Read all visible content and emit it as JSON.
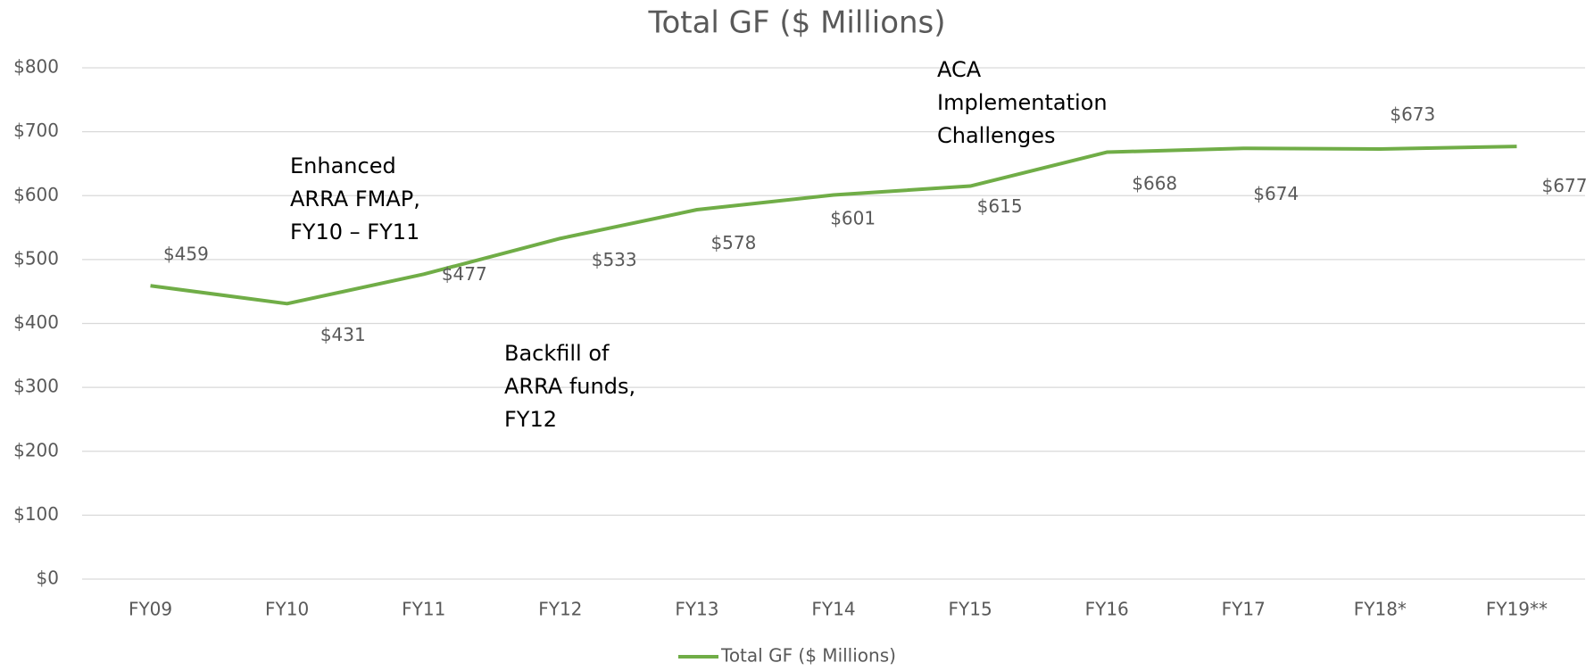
{
  "chart_data": {
    "type": "line",
    "title": "Total GF ($ Millions)",
    "categories": [
      "FY09",
      "FY10",
      "FY11",
      "FY12",
      "FY13",
      "FY14",
      "FY15",
      "FY16",
      "FY17",
      "FY18*",
      "FY19**"
    ],
    "series": [
      {
        "name": "Total GF ($ Millions)",
        "color": "#70ad47",
        "values": [
          459,
          431,
          477,
          533,
          578,
          601,
          615,
          668,
          674,
          673,
          677
        ],
        "value_labels": [
          "$459",
          "$431",
          "$477",
          "$533",
          "$578",
          "$601",
          "$615",
          "$668",
          "$674",
          "$673",
          "$677"
        ]
      }
    ],
    "ylim": [
      0,
      800
    ],
    "yticks": [
      {
        "value": 0,
        "label": "$0"
      },
      {
        "value": 100,
        "label": "$100"
      },
      {
        "value": 200,
        "label": "$200"
      },
      {
        "value": 300,
        "label": "$300"
      },
      {
        "value": 400,
        "label": "$400"
      },
      {
        "value": 500,
        "label": "$500"
      },
      {
        "value": 600,
        "label": "$600"
      },
      {
        "value": 700,
        "label": "$700"
      },
      {
        "value": 800,
        "label": "$800"
      }
    ],
    "grid": true,
    "legend": "bottom",
    "annotations": [
      [
        "Enhanced",
        "ARRA FMAP,",
        "FY10 – FY11"
      ],
      [
        "Backfill of",
        "ARRA funds,",
        "FY12"
      ],
      [
        "ACA",
        "Implementation",
        "Challenges"
      ]
    ]
  }
}
